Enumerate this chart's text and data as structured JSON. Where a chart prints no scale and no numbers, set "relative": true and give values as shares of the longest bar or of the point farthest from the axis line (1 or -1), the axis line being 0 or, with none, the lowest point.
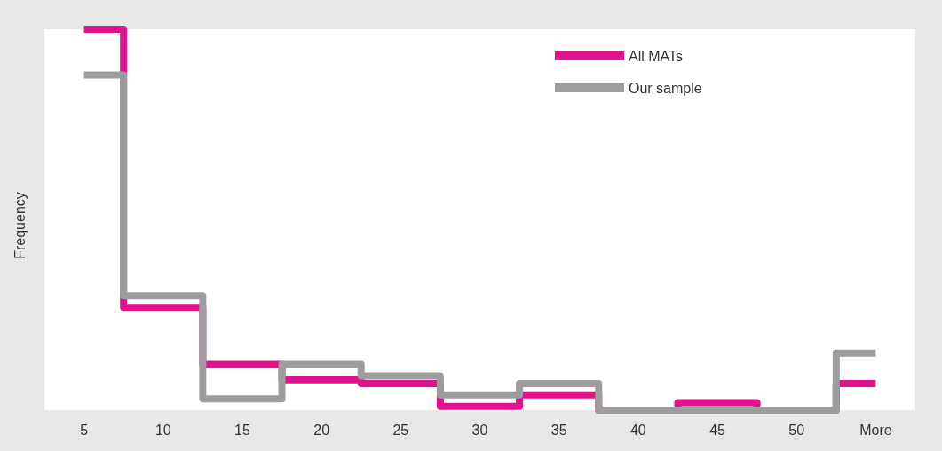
{
  "chart_data": {
    "type": "step",
    "relative": true,
    "ylabel": "Frequency",
    "legend": "top right",
    "marker": "none",
    "line_style": "solid",
    "categories": [
      "5",
      "10",
      "15",
      "20",
      "25",
      "30",
      "35",
      "40",
      "45",
      "50",
      "More"
    ],
    "series": [
      {
        "name": "All MATs",
        "color": "#e0138c",
        "values": [
          1.0,
          0.27,
          0.12,
          0.08,
          0.07,
          0.01,
          0.04,
          0,
          0.02,
          0,
          0.07
        ]
      },
      {
        "name": "Our sample",
        "color": "#9d9d9f",
        "values": [
          0.88,
          0.3,
          0.03,
          0.12,
          0.09,
          0.04,
          0.07,
          0,
          0,
          0,
          0.15
        ]
      }
    ]
  }
}
